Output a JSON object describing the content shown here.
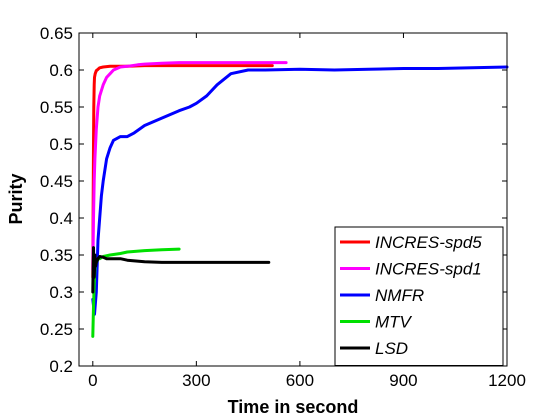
{
  "chart_data": {
    "type": "line",
    "xlabel": "Time in second",
    "ylabel": "Purity",
    "xlim": [
      -40,
      1200
    ],
    "ylim": [
      0.2,
      0.65
    ],
    "xticks": [
      0,
      300,
      600,
      900,
      1200
    ],
    "yticks": [
      0.2,
      0.25,
      0.3,
      0.35,
      0.4,
      0.45,
      0.5,
      0.55,
      0.6,
      0.65
    ],
    "xtick_labels": [
      "0",
      "300",
      "600",
      "900",
      "1200"
    ],
    "ytick_labels": [
      "0.2",
      "0.25",
      "0.3",
      "0.35",
      "0.4",
      "0.45",
      "0.5",
      "0.55",
      "0.6",
      "0.65"
    ],
    "grid": false,
    "legend_position": "bottom-right",
    "series": [
      {
        "name": "INCRES-spd5",
        "color": "#ff0000",
        "x": [
          0,
          1,
          2,
          3,
          4,
          5,
          7,
          10,
          15,
          20,
          30,
          50,
          80,
          100,
          150,
          200,
          300,
          400,
          500,
          520
        ],
        "y": [
          0.32,
          0.43,
          0.5,
          0.55,
          0.58,
          0.59,
          0.595,
          0.599,
          0.601,
          0.603,
          0.604,
          0.605,
          0.605,
          0.605,
          0.606,
          0.606,
          0.606,
          0.606,
          0.606,
          0.606
        ]
      },
      {
        "name": "INCRES-spd1",
        "color": "#ff00ff",
        "x": [
          0,
          2,
          4,
          6,
          8,
          10,
          15,
          20,
          30,
          40,
          50,
          60,
          70,
          80,
          100,
          130,
          150,
          200,
          250,
          300,
          400,
          500,
          560
        ],
        "y": [
          0.33,
          0.4,
          0.45,
          0.48,
          0.5,
          0.52,
          0.55,
          0.565,
          0.58,
          0.59,
          0.595,
          0.6,
          0.602,
          0.604,
          0.605,
          0.607,
          0.608,
          0.609,
          0.61,
          0.61,
          0.61,
          0.61,
          0.61
        ]
      },
      {
        "name": "NMFR",
        "color": "#0000ff",
        "x": [
          0,
          5,
          10,
          15,
          20,
          25,
          30,
          40,
          50,
          60,
          80,
          100,
          120,
          150,
          200,
          250,
          280,
          300,
          330,
          360,
          400,
          450,
          500,
          600,
          700,
          800,
          900,
          1000,
          1100,
          1200
        ],
        "y": [
          0.29,
          0.27,
          0.3,
          0.37,
          0.4,
          0.43,
          0.45,
          0.48,
          0.495,
          0.505,
          0.51,
          0.51,
          0.515,
          0.525,
          0.535,
          0.545,
          0.55,
          0.555,
          0.565,
          0.58,
          0.595,
          0.6,
          0.6,
          0.601,
          0.6,
          0.601,
          0.602,
          0.602,
          0.603,
          0.604
        ]
      },
      {
        "name": "MTV",
        "color": "#00e000",
        "x": [
          0,
          2,
          4,
          6,
          8,
          10,
          15,
          20,
          30,
          50,
          80,
          100,
          150,
          200,
          250
        ],
        "y": [
          0.24,
          0.28,
          0.31,
          0.33,
          0.34,
          0.34,
          0.345,
          0.345,
          0.348,
          0.35,
          0.352,
          0.354,
          0.356,
          0.357,
          0.358
        ]
      },
      {
        "name": "LSD",
        "color": "#000000",
        "x": [
          0,
          1,
          2,
          3,
          4,
          5,
          6,
          7,
          8,
          10,
          15,
          20,
          30,
          40,
          60,
          80,
          100,
          150,
          200,
          250,
          300,
          400,
          500,
          510
        ],
        "y": [
          0.3,
          0.34,
          0.36,
          0.34,
          0.32,
          0.33,
          0.35,
          0.34,
          0.335,
          0.34,
          0.345,
          0.348,
          0.347,
          0.345,
          0.345,
          0.345,
          0.343,
          0.341,
          0.34,
          0.34,
          0.34,
          0.34,
          0.34,
          0.34
        ]
      }
    ]
  }
}
